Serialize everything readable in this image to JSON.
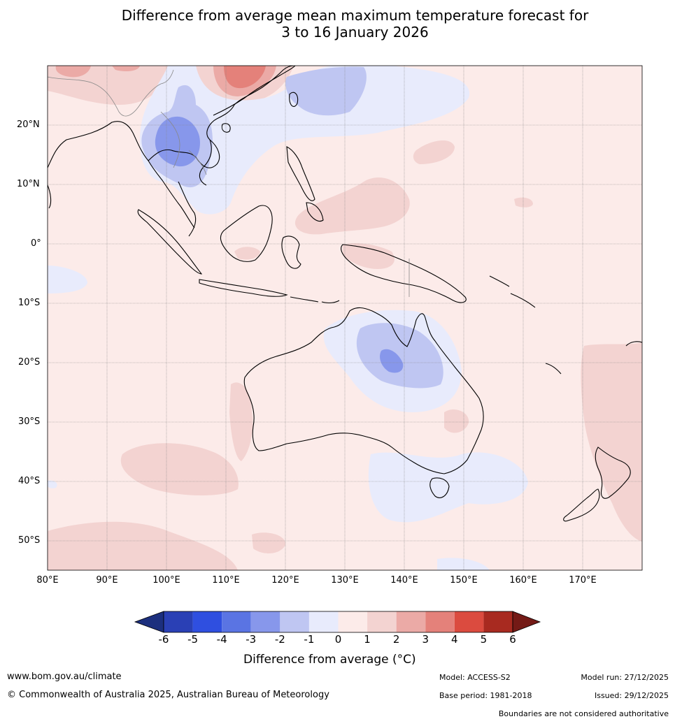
{
  "title": {
    "line1": "Difference from average mean maximum temperature forecast for",
    "line2": "3 to 16 January 2026"
  },
  "map": {
    "lat_labels": [
      "20°N",
      "10°N",
      "0°",
      "10°S",
      "20°S",
      "30°S",
      "40°S",
      "50°S"
    ],
    "lon_labels": [
      "80°E",
      "90°E",
      "100°E",
      "110°E",
      "120°E",
      "130°E",
      "140°E",
      "150°E",
      "160°E",
      "170°E"
    ],
    "background_class_color": "#fbe9e7"
  },
  "colorbar": {
    "title": "Difference from average (°C)",
    "ticks": [
      "-6",
      "-5",
      "-4",
      "-3",
      "-2",
      "-1",
      "0",
      "1",
      "2",
      "3",
      "4",
      "5",
      "6"
    ],
    "colors": [
      "#1c2f7e",
      "#2a40b5",
      "#2f4fe0",
      "#5a74e3",
      "#8797eb",
      "#bfc6f2",
      "#e8ebfc",
      "#fcebe9",
      "#f3d3d1",
      "#ebaaa6",
      "#e4817a",
      "#db4b3f",
      "#a82a20",
      "#741a16"
    ]
  },
  "footer": {
    "website": "www.bom.gov.au/climate",
    "copyright": "© Commonwealth of Australia 2025, Australian Bureau of Meteorology",
    "model": "Model: ACCESS-S2",
    "base_period": "Base period: 1981-2018",
    "model_run": "Model run: 27/12/2025",
    "issued": "Issued: 29/12/2025",
    "disclaimer": "Boundaries are not considered authoritative"
  }
}
